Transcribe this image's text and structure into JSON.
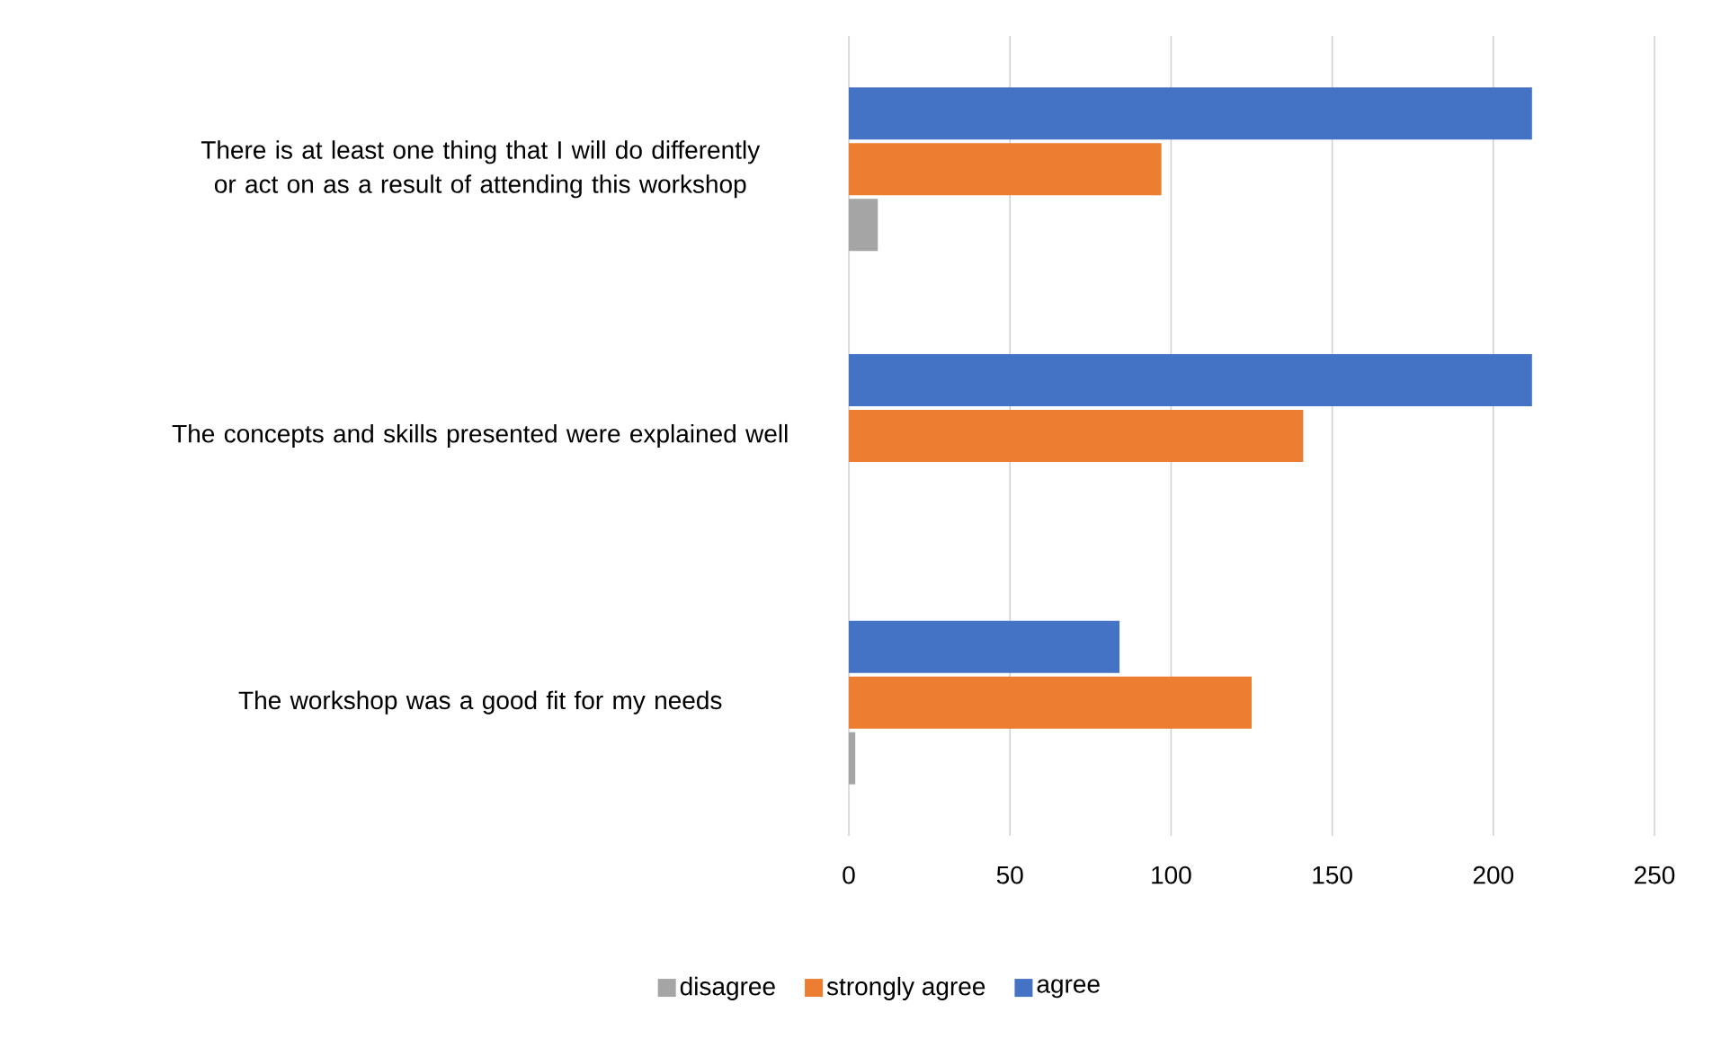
{
  "chart_data": {
    "type": "bar",
    "orientation": "horizontal",
    "categories": [
      "There is at least one thing that I will do differently or act on as a result of attending this workshop",
      "The concepts and skills presented were explained well",
      "The workshop was a good fit for my needs"
    ],
    "series": [
      {
        "name": "disagree",
        "color": "#a5a5a5",
        "values": [
          9,
          0,
          2
        ]
      },
      {
        "name": "strongly agree",
        "color": "#ed7d31",
        "values": [
          97,
          141,
          125
        ]
      },
      {
        "name": "agree",
        "color": "#4472c4",
        "values": [
          212,
          212,
          84
        ]
      }
    ],
    "xlim": [
      0,
      250
    ],
    "xticks": [
      0,
      50,
      100,
      150,
      200,
      250
    ],
    "grid": "x",
    "legend": "bottom"
  }
}
